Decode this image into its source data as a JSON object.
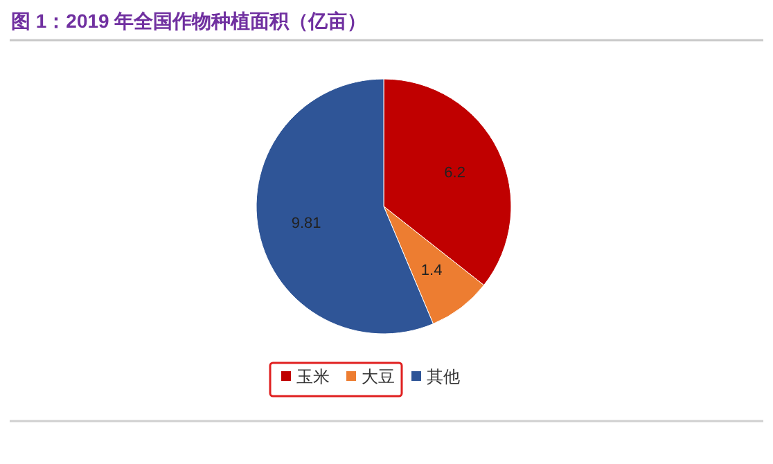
{
  "chart_data": {
    "type": "pie",
    "title": "图 1：2019 年全国作物种植面积（亿亩）",
    "categories": [
      "玉米",
      "大豆",
      "其他"
    ],
    "values": [
      6.2,
      1.4,
      9.81
    ],
    "colors": [
      "#c00000",
      "#ed7d31",
      "#2f5597"
    ],
    "data_labels": true,
    "legend": "bottom"
  }
}
